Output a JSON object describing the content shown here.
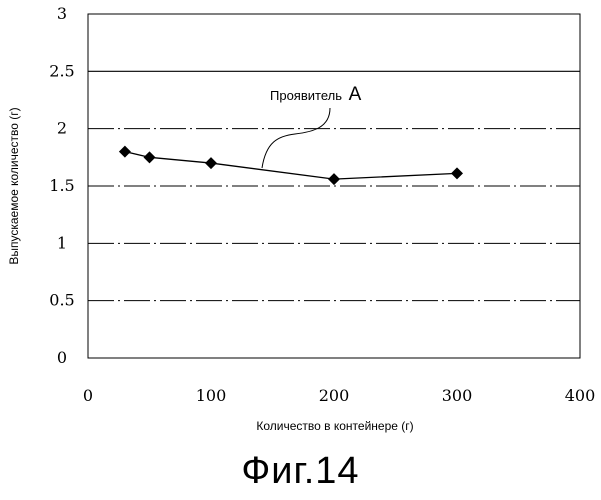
{
  "figure": {
    "caption": "Фиг.14"
  },
  "chart_data": {
    "type": "line",
    "title": "",
    "xlabel": "Количество в контейнере (г)",
    "ylabel": "Выпускаемое количество (г)",
    "xlim": [
      0,
      400
    ],
    "ylim": [
      0,
      3
    ],
    "x_ticks": [
      0,
      100,
      200,
      300,
      400
    ],
    "y_ticks": [
      0,
      0.5,
      1,
      1.5,
      2,
      2.5,
      3
    ],
    "x_tick_labels": [
      "0",
      "100",
      "200",
      "300",
      "400"
    ],
    "y_tick_labels": [
      "0",
      "0.5",
      "1",
      "1.5",
      "2",
      "2.5",
      "3"
    ],
    "grid": "horizontal dashed",
    "series": [
      {
        "x": [
          30,
          50,
          100,
          200,
          300
        ],
        "y": [
          1.8,
          1.75,
          1.7,
          1.56,
          1.61
        ],
        "marker": "diamond",
        "color": "#000000"
      }
    ],
    "annotation": {
      "text": "Проявитель",
      "letter": "A"
    }
  }
}
